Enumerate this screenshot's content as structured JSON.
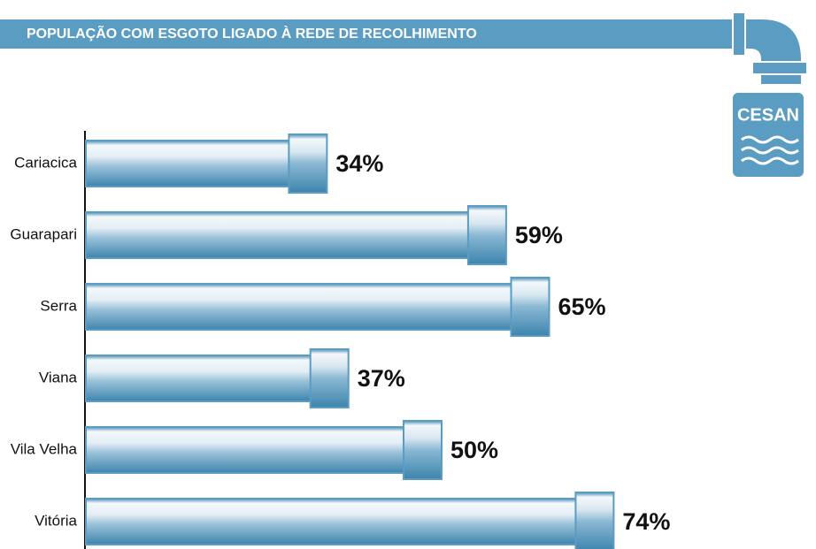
{
  "chart_data": {
    "type": "bar",
    "orientation": "horizontal",
    "title": "POPULAÇÃO COM ESGOTO LIGADO À REDE DE RECOLHIMENTO",
    "logo": "CESAN",
    "categories": [
      "Cariacica",
      "Guarapari",
      "Serra",
      "Viana",
      "Vila Velha",
      "Vitória"
    ],
    "values": [
      34,
      59,
      65,
      37,
      50,
      74
    ],
    "value_labels": [
      "34%",
      "59%",
      "65%",
      "37%",
      "50%",
      "74%"
    ],
    "color": "#5a9cc2"
  }
}
